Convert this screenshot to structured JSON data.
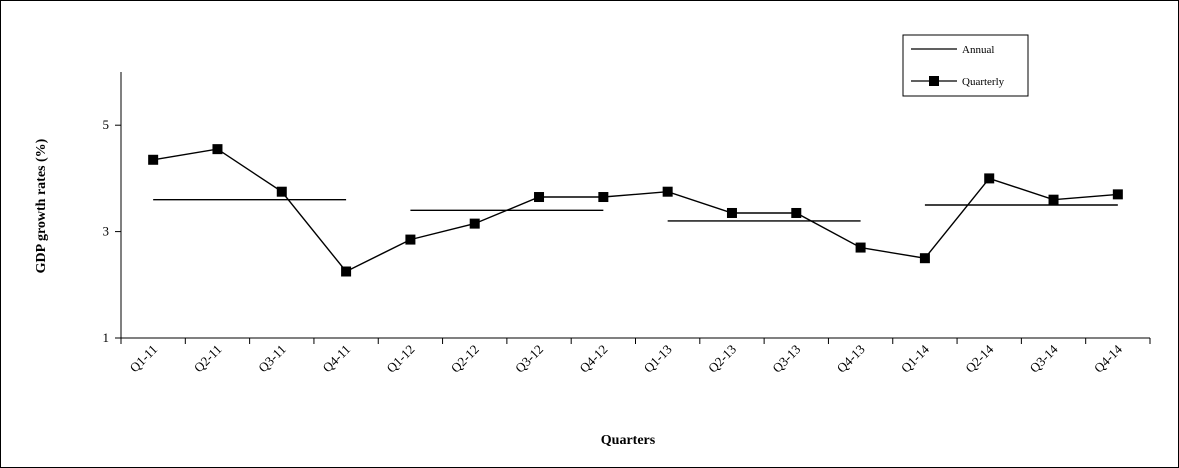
{
  "chart_data": {
    "type": "line",
    "xlabel": "Quarters",
    "ylabel": "GDP growth rates (%)",
    "ylim": [
      1,
      6
    ],
    "yticks": [
      1,
      3,
      5
    ],
    "categories": [
      "Q1-11",
      "Q2-11",
      "Q3-11",
      "Q4-11",
      "Q1-12",
      "Q2-12",
      "Q3-12",
      "Q4-12",
      "Q1-13",
      "Q2-13",
      "Q3-13",
      "Q4-13",
      "Q1-14",
      "Q2-14",
      "Q3-14",
      "Q4-14"
    ],
    "series": [
      {
        "name": "Quarterly",
        "style": "line-with-square-markers",
        "values": [
          4.35,
          4.55,
          3.75,
          2.25,
          2.85,
          3.15,
          3.65,
          3.65,
          3.75,
          3.35,
          3.35,
          2.7,
          2.5,
          4.0,
          3.6,
          3.7
        ]
      },
      {
        "name": "Annual",
        "style": "step-per-year",
        "segments": [
          {
            "from": "Q1-11",
            "to": "Q4-11",
            "value": 3.6
          },
          {
            "from": "Q1-12",
            "to": "Q4-12",
            "value": 3.4
          },
          {
            "from": "Q1-13",
            "to": "Q4-13",
            "value": 3.2
          },
          {
            "from": "Q1-14",
            "to": "Q4-14",
            "value": 3.5
          }
        ]
      }
    ],
    "legend_position": "top-right",
    "grid": false,
    "colors": {
      "line": "#000000",
      "marker": "#000000"
    }
  }
}
